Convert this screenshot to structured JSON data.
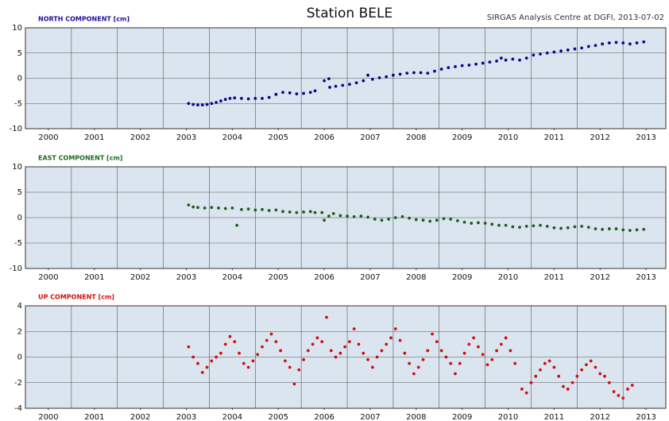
{
  "header": {
    "title": "Station BELE",
    "subtitle": "SIRGAS Analysis Centre at DGFI, 2013-07-02"
  },
  "chart_data": [
    {
      "type": "scatter",
      "title": "NORTH COMPONENT [cm]",
      "title_color": "#1e0f9c",
      "color": "#0a0a8c",
      "x": [
        2003.55,
        2003.65,
        2003.75,
        2003.85,
        2003.95,
        2004.05,
        2004.15,
        2004.25,
        2004.35,
        2004.45,
        2004.55,
        2004.7,
        2004.85,
        2005.0,
        2005.15,
        2005.3,
        2005.45,
        2005.6,
        2005.75,
        2005.9,
        2006.05,
        2006.2,
        2006.3,
        2006.5,
        2006.6,
        2006.62,
        2006.75,
        2006.9,
        2007.05,
        2007.2,
        2007.35,
        2007.45,
        2007.55,
        2007.7,
        2007.85,
        2008.0,
        2008.15,
        2008.3,
        2008.45,
        2008.6,
        2008.75,
        2008.9,
        2009.05,
        2009.2,
        2009.35,
        2009.5,
        2009.65,
        2009.8,
        2009.95,
        2010.1,
        2010.25,
        2010.35,
        2010.45,
        2010.6,
        2010.75,
        2010.9,
        2011.05,
        2011.2,
        2011.35,
        2011.5,
        2011.65,
        2011.8,
        2011.95,
        2012.1,
        2012.25,
        2012.4,
        2012.55,
        2012.7,
        2012.85,
        2013.0,
        2013.15,
        2013.3,
        2013.45
      ],
      "values": [
        -5.0,
        -5.2,
        -5.3,
        -5.3,
        -5.2,
        -5.0,
        -4.8,
        -4.5,
        -4.2,
        -4.0,
        -3.9,
        -4.0,
        -4.1,
        -4.0,
        -4.0,
        -3.8,
        -3.2,
        -2.8,
        -2.9,
        -3.1,
        -3.0,
        -2.8,
        -2.5,
        -0.5,
        -0.1,
        -1.8,
        -1.6,
        -1.4,
        -1.2,
        -0.9,
        -0.5,
        0.6,
        -0.2,
        0.1,
        0.3,
        0.6,
        0.8,
        1.0,
        1.1,
        1.1,
        1.0,
        1.4,
        1.8,
        2.1,
        2.3,
        2.5,
        2.6,
        2.8,
        3.0,
        3.2,
        3.4,
        4.0,
        3.6,
        3.8,
        3.6,
        4.0,
        4.6,
        4.8,
        5.0,
        5.2,
        5.4,
        5.6,
        5.8,
        6.0,
        6.3,
        6.5,
        6.8,
        7.0,
        7.1,
        7.0,
        6.8,
        7.0,
        7.2
      ],
      "xlim": [
        2000,
        2013.93
      ],
      "xticks": [
        {
          "value": 2000.5,
          "label": "2000"
        },
        {
          "value": 2001.5,
          "label": "2001"
        },
        {
          "value": 2002.5,
          "label": "2002"
        },
        {
          "value": 2003.5,
          "label": "2003"
        },
        {
          "value": 2004.5,
          "label": "2004"
        },
        {
          "value": 2005.5,
          "label": "2005"
        },
        {
          "value": 2006.5,
          "label": "2006"
        },
        {
          "value": 2007.5,
          "label": "2007"
        },
        {
          "value": 2008.5,
          "label": "2008"
        },
        {
          "value": 2009.5,
          "label": "2009"
        },
        {
          "value": 2010.5,
          "label": "2010"
        },
        {
          "value": 2011.5,
          "label": "2011"
        },
        {
          "value": 2012.5,
          "label": "2012"
        },
        {
          "value": 2013.5,
          "label": "2013"
        }
      ],
      "xgrid": [
        2001,
        2002,
        2003,
        2004,
        2005,
        2006,
        2007,
        2008,
        2009,
        2010,
        2011,
        2012,
        2013
      ],
      "ylim": [
        -10,
        10
      ],
      "yticks": [
        -10,
        -5,
        0,
        5,
        10
      ],
      "grid": true
    },
    {
      "type": "scatter",
      "title": "EAST COMPONENT [cm]",
      "title_color": "#1e6b1e",
      "color": "#1f5f1f",
      "x": [
        2003.55,
        2003.65,
        2003.75,
        2003.9,
        2004.05,
        2004.2,
        2004.35,
        2004.5,
        2004.6,
        2004.7,
        2004.85,
        2005.0,
        2005.15,
        2005.3,
        2005.45,
        2005.6,
        2005.75,
        2005.9,
        2006.05,
        2006.2,
        2006.3,
        2006.45,
        2006.5,
        2006.6,
        2006.7,
        2006.85,
        2007.0,
        2007.15,
        2007.3,
        2007.45,
        2007.6,
        2007.75,
        2007.9,
        2008.05,
        2008.2,
        2008.35,
        2008.5,
        2008.65,
        2008.8,
        2008.95,
        2009.1,
        2009.25,
        2009.4,
        2009.55,
        2009.7,
        2009.85,
        2010.0,
        2010.15,
        2010.3,
        2010.45,
        2010.6,
        2010.75,
        2010.9,
        2011.05,
        2011.2,
        2011.35,
        2011.5,
        2011.65,
        2011.8,
        2011.95,
        2012.1,
        2012.25,
        2012.4,
        2012.55,
        2012.7,
        2012.85,
        2013.0,
        2013.15,
        2013.3,
        2013.45
      ],
      "values": [
        2.5,
        2.1,
        2.0,
        1.9,
        2.0,
        1.9,
        1.8,
        1.9,
        -1.5,
        1.6,
        1.7,
        1.5,
        1.6,
        1.4,
        1.5,
        1.2,
        1.1,
        1.0,
        1.1,
        1.2,
        1.0,
        1.0,
        -0.5,
        0.3,
        0.8,
        0.4,
        0.3,
        0.2,
        0.3,
        0.1,
        -0.3,
        -0.5,
        -0.3,
        0,
        0.2,
        -0.1,
        -0.4,
        -0.5,
        -0.7,
        -0.5,
        -0.2,
        -0.3,
        -0.6,
        -0.9,
        -1.1,
        -1.0,
        -1.1,
        -1.3,
        -1.5,
        -1.5,
        -1.8,
        -1.9,
        -1.7,
        -1.6,
        -1.5,
        -1.7,
        -2.0,
        -2.1,
        -2.0,
        -1.8,
        -1.7,
        -1.9,
        -2.2,
        -2.3,
        -2.2,
        -2.2,
        -2.4,
        -2.5,
        -2.4,
        -2.3
      ],
      "xlim": [
        2000,
        2013.93
      ],
      "xticks": [
        {
          "value": 2000.5,
          "label": "2000"
        },
        {
          "value": 2001.5,
          "label": "2001"
        },
        {
          "value": 2002.5,
          "label": "2002"
        },
        {
          "value": 2003.5,
          "label": "2003"
        },
        {
          "value": 2004.5,
          "label": "2004"
        },
        {
          "value": 2005.5,
          "label": "2005"
        },
        {
          "value": 2006.5,
          "label": "2006"
        },
        {
          "value": 2007.5,
          "label": "2007"
        },
        {
          "value": 2008.5,
          "label": "2008"
        },
        {
          "value": 2009.5,
          "label": "2009"
        },
        {
          "value": 2010.5,
          "label": "2010"
        },
        {
          "value": 2011.5,
          "label": "2011"
        },
        {
          "value": 2012.5,
          "label": "2012"
        },
        {
          "value": 2013.5,
          "label": "2013"
        }
      ],
      "xgrid": [
        2001,
        2002,
        2003,
        2004,
        2005,
        2006,
        2007,
        2008,
        2009,
        2010,
        2011,
        2012,
        2013
      ],
      "ylim": [
        -10,
        10
      ],
      "yticks": [
        -10,
        -5,
        0,
        5,
        10
      ],
      "grid": true
    },
    {
      "type": "scatter",
      "title": "UP COMPONENT [cm]",
      "title_color": "#d01010",
      "color": "#d01010",
      "x": [
        2003.55,
        2003.65,
        2003.75,
        2003.85,
        2003.95,
        2004.05,
        2004.15,
        2004.25,
        2004.35,
        2004.45,
        2004.55,
        2004.65,
        2004.75,
        2004.85,
        2004.95,
        2005.05,
        2005.15,
        2005.25,
        2005.35,
        2005.45,
        2005.55,
        2005.65,
        2005.75,
        2005.85,
        2005.95,
        2006.05,
        2006.15,
        2006.25,
        2006.35,
        2006.45,
        2006.55,
        2006.65,
        2006.75,
        2006.85,
        2006.95,
        2007.05,
        2007.15,
        2007.25,
        2007.35,
        2007.45,
        2007.55,
        2007.65,
        2007.75,
        2007.85,
        2007.95,
        2008.05,
        2008.15,
        2008.25,
        2008.35,
        2008.45,
        2008.55,
        2008.65,
        2008.75,
        2008.85,
        2008.95,
        2009.05,
        2009.15,
        2009.25,
        2009.35,
        2009.45,
        2009.55,
        2009.65,
        2009.75,
        2009.85,
        2009.95,
        2010.05,
        2010.15,
        2010.25,
        2010.35,
        2010.45,
        2010.55,
        2010.65,
        2010.8,
        2010.9,
        2011.0,
        2011.1,
        2011.2,
        2011.3,
        2011.4,
        2011.5,
        2011.6,
        2011.7,
        2011.8,
        2011.9,
        2012.0,
        2012.1,
        2012.2,
        2012.3,
        2012.4,
        2012.5,
        2012.6,
        2012.7,
        2012.8,
        2012.9,
        2013.0,
        2013.1,
        2013.2
      ],
      "values": [
        0.8,
        0,
        -0.5,
        -1.2,
        -0.8,
        -0.3,
        0,
        0.3,
        1.0,
        1.6,
        1.2,
        0.3,
        -0.5,
        -0.8,
        -0.3,
        0.2,
        0.8,
        1.3,
        1.8,
        1.2,
        0.5,
        -0.3,
        -0.8,
        -2.1,
        -1.0,
        -0.2,
        0.5,
        1.0,
        1.5,
        1.2,
        3.1,
        0.5,
        0,
        0.3,
        0.8,
        1.2,
        2.2,
        1.0,
        0.3,
        -0.2,
        -0.8,
        0,
        0.5,
        1.0,
        1.5,
        2.2,
        1.3,
        0.3,
        -0.5,
        -1.3,
        -0.8,
        -0.2,
        0.5,
        1.8,
        1.2,
        0.5,
        0,
        -0.5,
        -1.3,
        -0.5,
        0.3,
        1.0,
        1.5,
        0.8,
        0.2,
        -0.6,
        -0.2,
        0.5,
        1.0,
        1.5,
        0.5,
        -0.5,
        -2.5,
        -2.8,
        -2.0,
        -1.5,
        -1.0,
        -0.5,
        -0.3,
        -0.8,
        -1.5,
        -2.3,
        -2.5,
        -2.0,
        -1.5,
        -1.0,
        -0.6,
        -0.3,
        -0.8,
        -1.3,
        -1.5,
        -2.0,
        -2.7,
        -3.0,
        -3.2,
        -2.5,
        -2.2
      ],
      "xlim": [
        2000,
        2013.93
      ],
      "xticks": [
        {
          "value": 2000.5,
          "label": "2000"
        },
        {
          "value": 2001.5,
          "label": "2001"
        },
        {
          "value": 2002.5,
          "label": "2002"
        },
        {
          "value": 2003.5,
          "label": "2003"
        },
        {
          "value": 2004.5,
          "label": "2004"
        },
        {
          "value": 2005.5,
          "label": "2005"
        },
        {
          "value": 2006.5,
          "label": "2006"
        },
        {
          "value": 2007.5,
          "label": "2007"
        },
        {
          "value": 2008.5,
          "label": "2008"
        },
        {
          "value": 2009.5,
          "label": "2009"
        },
        {
          "value": 2010.5,
          "label": "2010"
        },
        {
          "value": 2011.5,
          "label": "2011"
        },
        {
          "value": 2012.5,
          "label": "2012"
        },
        {
          "value": 2013.5,
          "label": "2013"
        }
      ],
      "xgrid": [
        2001,
        2002,
        2003,
        2004,
        2005,
        2006,
        2007,
        2008,
        2009,
        2010,
        2011,
        2012,
        2013
      ],
      "ylim": [
        -4,
        4
      ],
      "yticks": [
        -4,
        -2,
        0,
        2,
        4
      ],
      "grid": true
    }
  ]
}
